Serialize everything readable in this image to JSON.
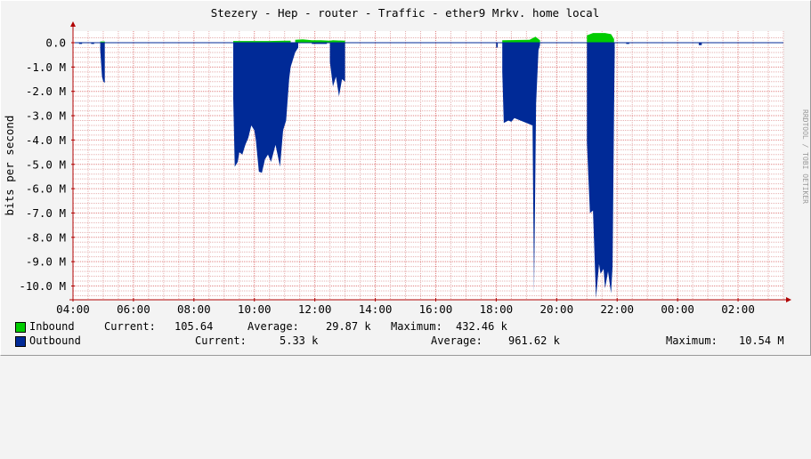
{
  "title": "Stezery - Hep - router - Traffic - ether9 Mrkv. home local",
  "watermark": "RRDTOOL / TOBI OETIKER",
  "colors": {
    "background": "#f3f3f3",
    "plot_background": "#ffffff",
    "grid_minor": "#e6b0b0",
    "grid_major": "#e08080",
    "axis": "#b00000",
    "inbound": "#00cc00",
    "outbound": "#002a97"
  },
  "legend": [
    {
      "name": "Inbound",
      "color": "#00cc00",
      "current_label": "Current:",
      "current": "105.64",
      "average_label": "Average:",
      "average": "29.87 k",
      "maximum_label": "Maximum:",
      "maximum": "432.46 k"
    },
    {
      "name": "Outbound",
      "color": "#002a97",
      "current_label": "Current:",
      "current": "5.33 k",
      "average_label": "Average:",
      "average": "961.62 k",
      "maximum_label": "Maximum:",
      "maximum": "10.54 M"
    }
  ],
  "chart_data": {
    "type": "area",
    "title": "Stezery - Hep - router - Traffic - ether9 Mrkv. home local",
    "xlabel": "",
    "ylabel": "bits per second",
    "xlim": [
      4.0,
      27.5
    ],
    "ylim": [
      -10.5,
      0.3
    ],
    "x_ticks": [
      "04:00",
      "06:00",
      "08:00",
      "10:00",
      "12:00",
      "14:00",
      "16:00",
      "18:00",
      "20:00",
      "22:00",
      "00:00",
      "02:00"
    ],
    "x_tick_hours": [
      4,
      6,
      8,
      10,
      12,
      14,
      16,
      18,
      20,
      22,
      24,
      26
    ],
    "y_ticks": [
      "0.0",
      "-1.0 M",
      "-2.0 M",
      "-3.0 M",
      "-4.0 M",
      "-5.0 M",
      "-6.0 M",
      "-7.0 M",
      "-8.0 M",
      "-9.0 M",
      "-10.0 M"
    ],
    "y_tick_values": [
      0,
      -1,
      -2,
      -3,
      -4,
      -5,
      -6,
      -7,
      -8,
      -9,
      -10
    ],
    "grid": true,
    "legend_position": "bottom",
    "series": [
      {
        "name": "Inbound",
        "color": "#00cc00",
        "unit": "Mbit/s",
        "points": [
          [
            4.0,
            0
          ],
          [
            4.9,
            0
          ],
          [
            4.9,
            0.05
          ],
          [
            5.05,
            0.05
          ],
          [
            5.05,
            0
          ],
          [
            9.3,
            0
          ],
          [
            9.3,
            0.07
          ],
          [
            10.5,
            0.07
          ],
          [
            11.0,
            0.08
          ],
          [
            11.2,
            0.08
          ],
          [
            11.2,
            0
          ],
          [
            11.35,
            0
          ],
          [
            11.35,
            0.12
          ],
          [
            11.6,
            0.14
          ],
          [
            11.9,
            0.1
          ],
          [
            12.2,
            0.1
          ],
          [
            12.5,
            0.08
          ],
          [
            12.6,
            0.1
          ],
          [
            13.0,
            0.08
          ],
          [
            13.0,
            0
          ],
          [
            18.2,
            0
          ],
          [
            18.2,
            0.1
          ],
          [
            19.1,
            0.12
          ],
          [
            19.3,
            0.25
          ],
          [
            19.45,
            0.1
          ],
          [
            19.45,
            0
          ],
          [
            21.0,
            0
          ],
          [
            21.0,
            0.3
          ],
          [
            21.2,
            0.4
          ],
          [
            21.6,
            0.4
          ],
          [
            21.8,
            0.35
          ],
          [
            21.9,
            0.15
          ],
          [
            21.9,
            0
          ],
          [
            27.5,
            0
          ]
        ]
      },
      {
        "name": "Outbound",
        "color": "#002a97",
        "unit": "Mbit/s",
        "points": [
          [
            4.0,
            0
          ],
          [
            4.2,
            0
          ],
          [
            4.2,
            -0.05
          ],
          [
            4.3,
            -0.05
          ],
          [
            4.3,
            0
          ],
          [
            4.6,
            0
          ],
          [
            4.6,
            -0.05
          ],
          [
            4.7,
            -0.05
          ],
          [
            4.7,
            0
          ],
          [
            4.9,
            0
          ],
          [
            4.9,
            -0.3
          ],
          [
            4.96,
            -1.4
          ],
          [
            5.0,
            -1.6
          ],
          [
            5.05,
            -1.65
          ],
          [
            5.05,
            0
          ],
          [
            9.3,
            0
          ],
          [
            9.3,
            -2.3
          ],
          [
            9.35,
            -5.1
          ],
          [
            9.45,
            -4.9
          ],
          [
            9.5,
            -4.5
          ],
          [
            9.6,
            -4.6
          ],
          [
            9.7,
            -4.2
          ],
          [
            9.8,
            -3.9
          ],
          [
            9.9,
            -3.4
          ],
          [
            10.0,
            -3.6
          ],
          [
            10.05,
            -4.0
          ],
          [
            10.15,
            -5.3
          ],
          [
            10.25,
            -5.35
          ],
          [
            10.35,
            -4.8
          ],
          [
            10.45,
            -4.6
          ],
          [
            10.55,
            -4.9
          ],
          [
            10.7,
            -4.2
          ],
          [
            10.85,
            -5.1
          ],
          [
            10.95,
            -3.6
          ],
          [
            11.05,
            -3.2
          ],
          [
            11.15,
            -1.5
          ],
          [
            11.2,
            -1.0
          ],
          [
            11.35,
            -0.4
          ],
          [
            11.45,
            -0.2
          ],
          [
            11.45,
            0
          ],
          [
            11.9,
            0
          ],
          [
            11.9,
            -0.05
          ],
          [
            12.4,
            -0.05
          ],
          [
            12.4,
            0
          ],
          [
            12.5,
            0
          ],
          [
            12.5,
            -0.8
          ],
          [
            12.6,
            -1.8
          ],
          [
            12.7,
            -1.4
          ],
          [
            12.8,
            -2.2
          ],
          [
            12.9,
            -1.5
          ],
          [
            13.0,
            -1.6
          ],
          [
            13.0,
            0
          ],
          [
            18.0,
            0
          ],
          [
            18.0,
            -0.2
          ],
          [
            18.05,
            -0.2
          ],
          [
            18.05,
            0
          ],
          [
            18.2,
            0
          ],
          [
            18.2,
            -1.2
          ],
          [
            18.25,
            -3.3
          ],
          [
            18.4,
            -3.2
          ],
          [
            18.5,
            -3.25
          ],
          [
            18.6,
            -3.1
          ],
          [
            18.8,
            -3.2
          ],
          [
            19.0,
            -3.3
          ],
          [
            19.1,
            -3.35
          ],
          [
            19.2,
            -3.4
          ],
          [
            19.25,
            -10.3
          ],
          [
            19.32,
            -2.5
          ],
          [
            19.4,
            -0.3
          ],
          [
            19.45,
            -0.1
          ],
          [
            19.45,
            0
          ],
          [
            21.0,
            0
          ],
          [
            21.0,
            -4.1
          ],
          [
            21.1,
            -7.0
          ],
          [
            21.2,
            -6.9
          ],
          [
            21.3,
            -10.5
          ],
          [
            21.4,
            -9.1
          ],
          [
            21.45,
            -9.5
          ],
          [
            21.55,
            -9.3
          ],
          [
            21.6,
            -10.1
          ],
          [
            21.7,
            -9.4
          ],
          [
            21.8,
            -10.3
          ],
          [
            21.85,
            -9.2
          ],
          [
            21.9,
            -2.7
          ],
          [
            21.92,
            -0.4
          ],
          [
            21.92,
            0
          ],
          [
            22.3,
            0
          ],
          [
            22.3,
            -0.05
          ],
          [
            22.4,
            -0.05
          ],
          [
            22.4,
            0
          ],
          [
            24.7,
            0
          ],
          [
            24.7,
            -0.1
          ],
          [
            24.8,
            -0.1
          ],
          [
            24.8,
            0
          ],
          [
            27.5,
            0
          ]
        ]
      }
    ]
  }
}
